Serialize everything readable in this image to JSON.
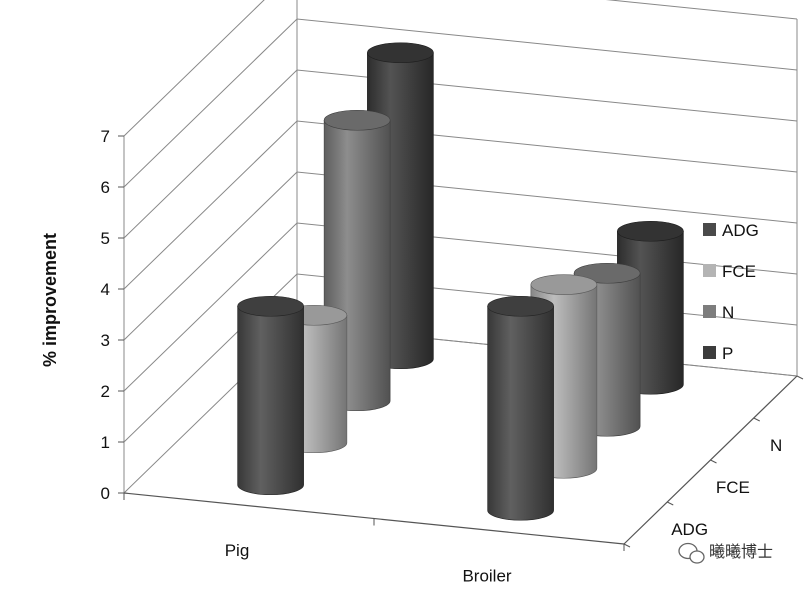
{
  "chart_data": {
    "type": "bar",
    "style": "3d-cylinder",
    "categories": [
      "Pig",
      "Broiler"
    ],
    "depth_categories": [
      "ADG",
      "FCE",
      "N",
      "P"
    ],
    "ylabel": "% improvement",
    "ylim": [
      0,
      7
    ],
    "yticks": [
      "0",
      "1",
      "2",
      "3",
      "4",
      "5",
      "6",
      "7"
    ],
    "grid": true,
    "legend_position": "right",
    "series": [
      {
        "name": "ADG",
        "color": "#4a4a4a",
        "values": [
          3.5,
          4.0
        ]
      },
      {
        "name": "FCE",
        "color": "#b4b4b4",
        "values": [
          2.5,
          3.6
        ]
      },
      {
        "name": "N",
        "color": "#7d7d7d",
        "values": [
          5.5,
          3.0
        ]
      },
      {
        "name": "P",
        "color": "#3c3c3c",
        "values": [
          6.0,
          3.0
        ]
      }
    ]
  },
  "legend": [
    "ADG",
    "FCE",
    "N",
    "P"
  ],
  "watermark": {
    "icon": "wechat-icon",
    "text": "曦曦博士"
  }
}
